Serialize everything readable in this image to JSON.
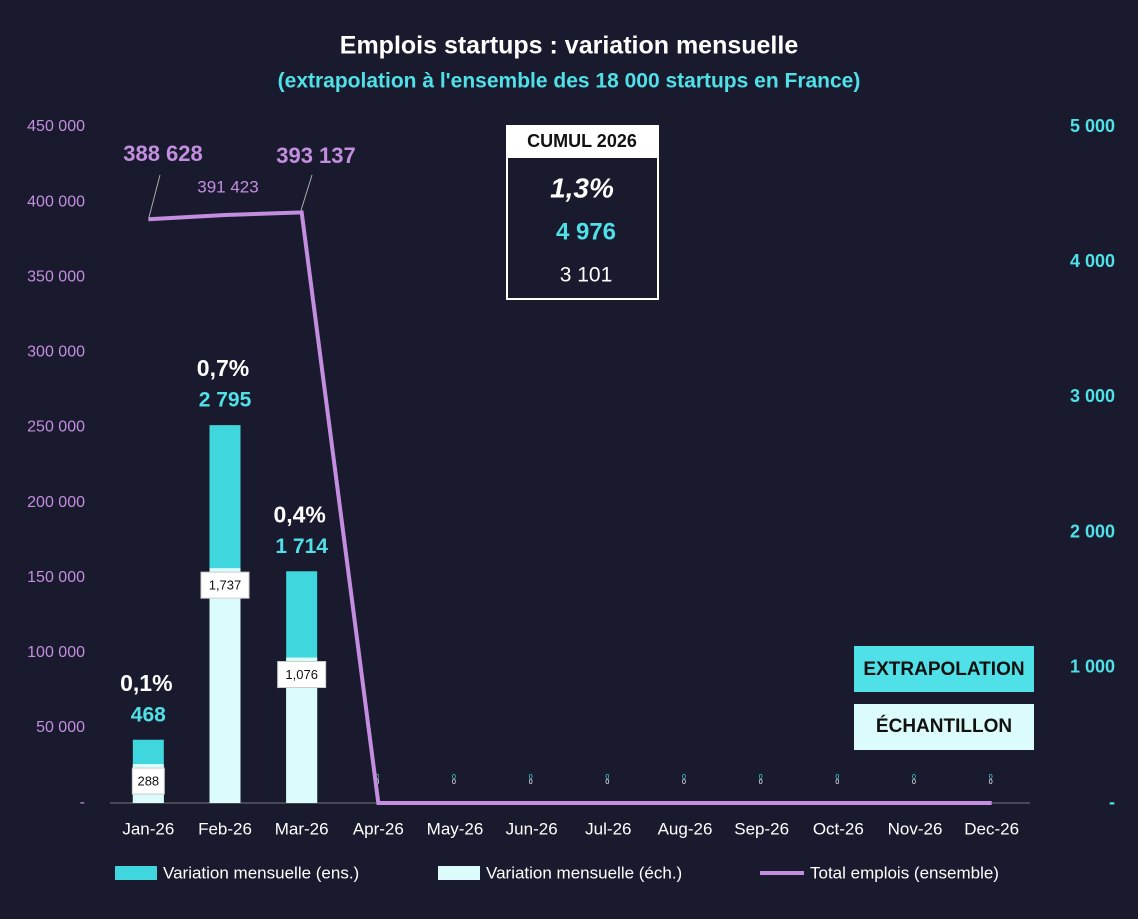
{
  "chart_data": {
    "type": "bar_line",
    "title": "Emplois startups : variation mensuelle",
    "subtitle": "(extrapolation à l'ensemble des 18 000 startups en France)",
    "categories": [
      "Jan-26",
      "Feb-26",
      "Mar-26",
      "Apr-26",
      "May-26",
      "Jun-26",
      "Jul-26",
      "Aug-26",
      "Sep-26",
      "Oct-26",
      "Nov-26",
      "Dec-26"
    ],
    "series": [
      {
        "name": "Variation mensuelle (ens.)",
        "color": "#3fd6dd",
        "axis": "y2",
        "values": [
          468,
          2795,
          1714,
          0,
          0,
          0,
          0,
          0,
          0,
          0,
          0,
          0
        ],
        "value_labels": [
          "468",
          "2 795",
          "1 714",
          "0",
          "0",
          "0",
          "0",
          "0",
          "0",
          "0",
          "0",
          "0"
        ]
      },
      {
        "name": "Variation mensuelle (éch.)",
        "color": "#dcfbfb",
        "axis": "y2",
        "values": [
          288,
          1737,
          1076,
          0,
          0,
          0,
          0,
          0,
          0,
          0,
          0,
          0
        ],
        "value_labels": [
          "288",
          "1,737",
          "1,076",
          "0",
          "0",
          "0",
          "0",
          "0",
          "0",
          "0",
          "0",
          "0"
        ]
      },
      {
        "name": "Total emplois (ensemble)",
        "color": "#c48ee0",
        "type": "line",
        "values": [
          388628,
          391423,
          393137,
          0,
          0,
          0,
          0,
          0,
          0,
          0,
          0,
          0
        ],
        "value_labels": [
          "388 628",
          "391 423",
          "393 137",
          null,
          null,
          null,
          null,
          null,
          null,
          null,
          null,
          null
        ]
      }
    ],
    "growth_labels": [
      "0,1%",
      "0,7%",
      "0,4%"
    ],
    "ylim": [
      0,
      450000
    ],
    "yticks": [
      {
        "value": 0,
        "label": "-"
      },
      {
        "value": 50000,
        "label": "50 000"
      },
      {
        "value": 100000,
        "label": "100 000"
      },
      {
        "value": 150000,
        "label": "150 000"
      },
      {
        "value": 200000,
        "label": "200 000"
      },
      {
        "value": 250000,
        "label": "250 000"
      },
      {
        "value": 300000,
        "label": "300 000"
      },
      {
        "value": 350000,
        "label": "350 000"
      },
      {
        "value": 400000,
        "label": "400 000"
      },
      {
        "value": 450000,
        "label": "450 000"
      }
    ],
    "y2lim": [
      0,
      5000
    ],
    "y2ticks": [
      {
        "value": 0,
        "label": "-"
      },
      {
        "value": 1000,
        "label": "1 000"
      },
      {
        "value": 2000,
        "label": "2 000"
      },
      {
        "value": 3000,
        "label": "3 000"
      },
      {
        "value": 4000,
        "label": "4 000"
      },
      {
        "value": 5000,
        "label": "5 000"
      }
    ],
    "cumul": {
      "title": "CUMUL 2026",
      "percent": "1,3%",
      "extrapolation": "4 976",
      "echantillon": "3 101"
    },
    "legend_boxes": [
      "EXTRAPOLATION",
      "ÉCHANTILLON"
    ],
    "legend": "bottom"
  }
}
